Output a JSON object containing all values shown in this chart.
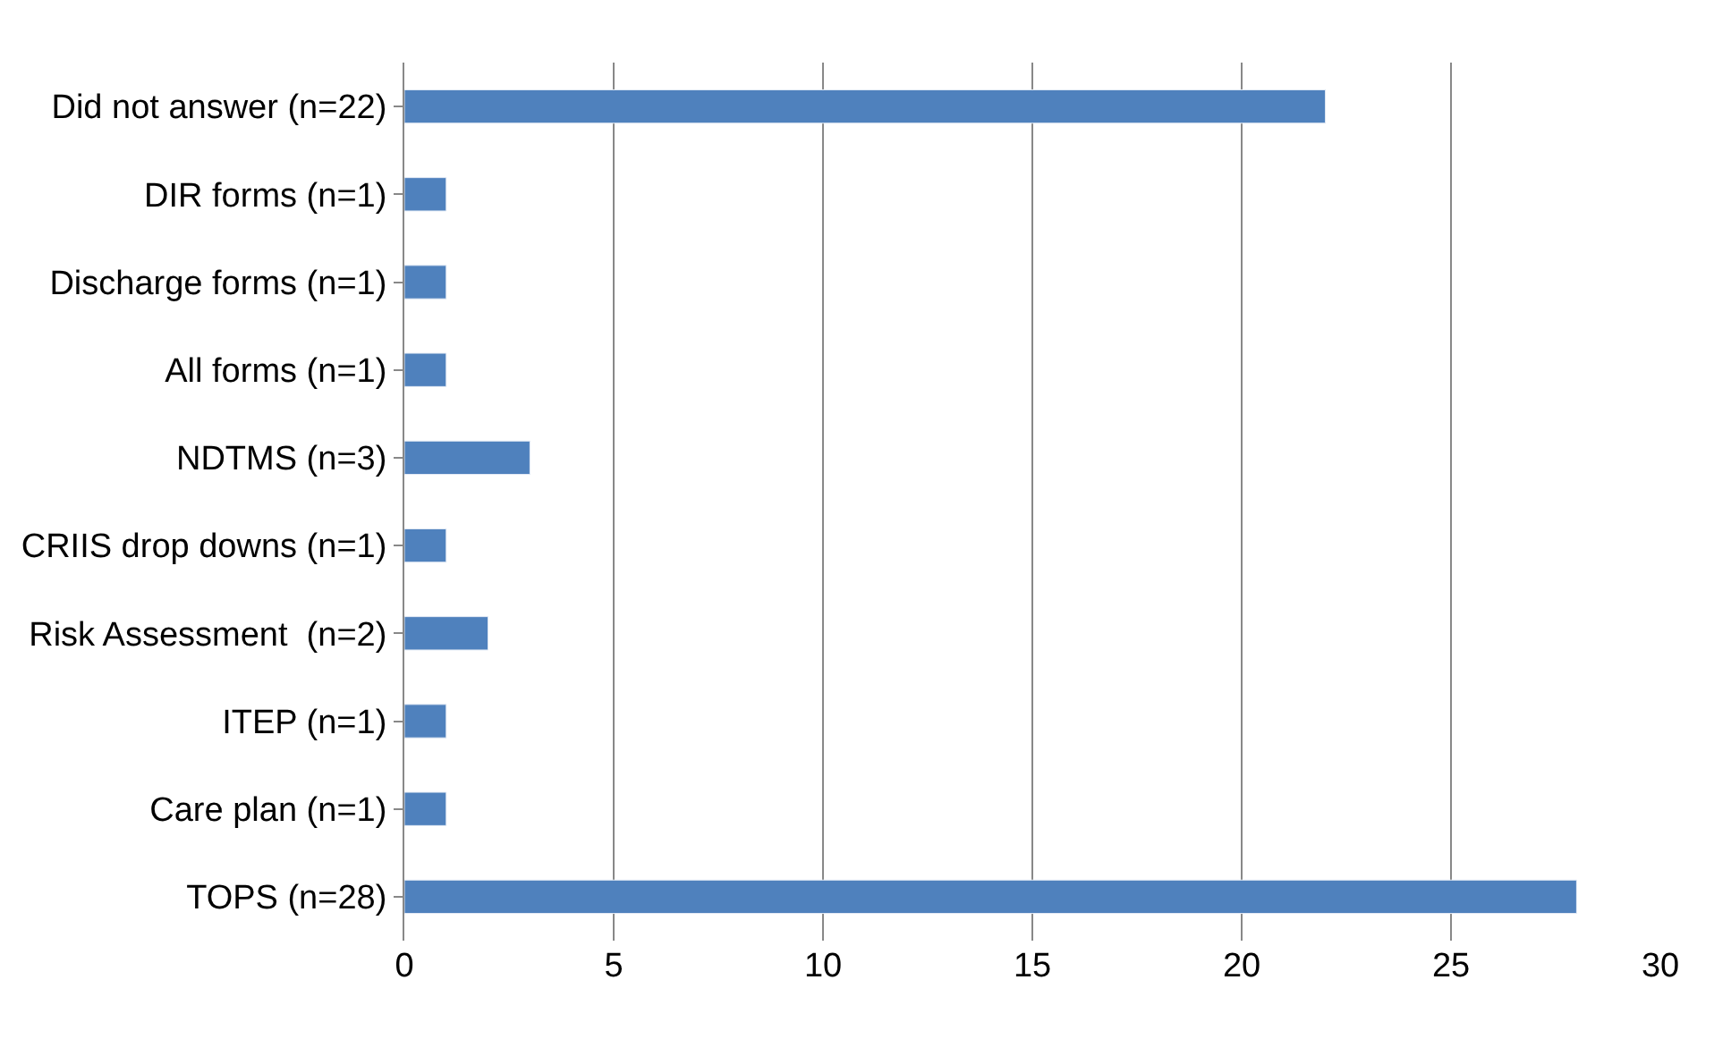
{
  "chart_data": {
    "type": "bar",
    "orientation": "horizontal",
    "categories": [
      "Did not answer (n=22)",
      "DIR forms (n=1)",
      "Discharge forms (n=1)",
      "All forms (n=1)",
      "NDTMS (n=3)",
      "CRIIS drop downs (n=1)",
      "Risk Assessment  (n=2)",
      "ITEP (n=1)",
      "Care plan (n=1)",
      "TOPS (n=28)"
    ],
    "values": [
      22,
      1,
      1,
      1,
      3,
      1,
      2,
      1,
      1,
      28
    ],
    "color": "#4f81bd",
    "xlim": [
      0,
      30
    ],
    "xticks": [
      0,
      5,
      10,
      15,
      20,
      25,
      30
    ],
    "grid": "x",
    "legend": false
  }
}
